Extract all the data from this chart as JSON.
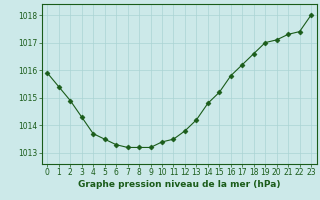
{
  "x": [
    0,
    1,
    2,
    3,
    4,
    5,
    6,
    7,
    8,
    9,
    10,
    11,
    12,
    13,
    14,
    15,
    16,
    17,
    18,
    19,
    20,
    21,
    22,
    23
  ],
  "y": [
    1015.9,
    1015.4,
    1014.9,
    1014.3,
    1013.7,
    1013.5,
    1013.3,
    1013.2,
    1013.2,
    1013.2,
    1013.4,
    1013.5,
    1013.8,
    1014.2,
    1014.8,
    1015.2,
    1015.8,
    1016.2,
    1016.6,
    1017.0,
    1017.1,
    1017.3,
    1017.4,
    1018.0
  ],
  "line_color": "#1a5c1a",
  "marker": "D",
  "marker_size": 2.5,
  "bg_color": "#cce9e9",
  "grid_color": "#aad4d4",
  "xlabel": "Graphe pression niveau de la mer (hPa)",
  "xlabel_color": "#1a5c1a",
  "tick_label_color": "#1a5c1a",
  "ylim": [
    1012.6,
    1018.4
  ],
  "yticks": [
    1013,
    1014,
    1015,
    1016,
    1017,
    1018
  ],
  "xlim": [
    -0.5,
    23.5
  ],
  "xticks": [
    0,
    1,
    2,
    3,
    4,
    5,
    6,
    7,
    8,
    9,
    10,
    11,
    12,
    13,
    14,
    15,
    16,
    17,
    18,
    19,
    20,
    21,
    22,
    23
  ],
  "tick_fontsize": 5.5,
  "xlabel_fontsize": 6.5
}
